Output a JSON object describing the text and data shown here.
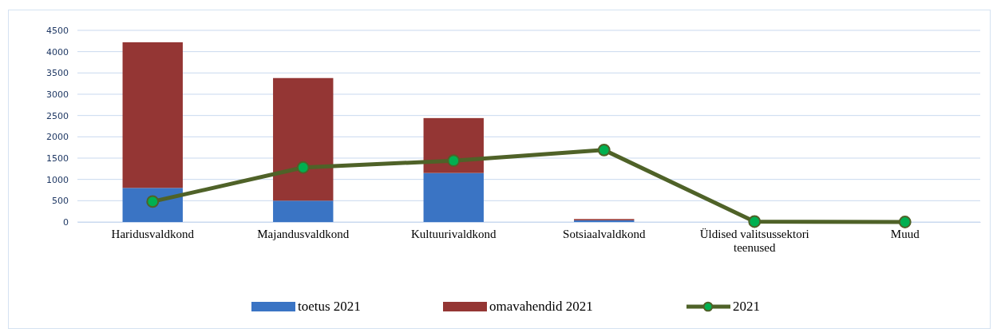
{
  "chart_data": {
    "type": "bar",
    "stacked": true,
    "categories": [
      "Haridusvaldkond",
      "Majandusvaldkond",
      "Kultuurivaldkond",
      "Sotsiaalvaldkond",
      "Üldised valitsussektori teenused",
      "Muud"
    ],
    "series": [
      {
        "name": "toetus 2021",
        "color": "#3a74c4",
        "values": [
          800,
          500,
          1150,
          40,
          0,
          0
        ]
      },
      {
        "name": "omavahendid 2021",
        "color": "#943634",
        "values": [
          3420,
          2880,
          1290,
          30,
          0,
          0
        ]
      },
      {
        "name": "2021",
        "type": "line",
        "color": "#4f6228",
        "marker": "circle",
        "values": [
          480,
          1280,
          1440,
          1690,
          10,
          0
        ]
      }
    ],
    "ylim": [
      0,
      4500
    ],
    "yticks": [
      0,
      500,
      1000,
      1500,
      2000,
      2500,
      3000,
      3500,
      4000,
      4500
    ],
    "grid": "y",
    "legend": "bottom"
  }
}
